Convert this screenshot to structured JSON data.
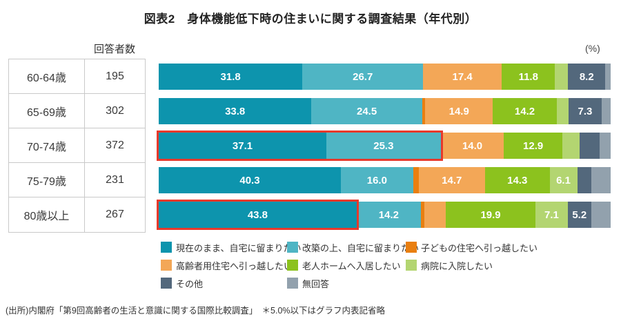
{
  "title": "図表2　身体機能低下時の住まいに関する調査結果（年代別）",
  "percent_label": "(%)",
  "table": {
    "header": "回答者数",
    "rows": [
      {
        "age": "60-64歳",
        "count": "195"
      },
      {
        "age": "65-69歳",
        "count": "302"
      },
      {
        "age": "70-74歳",
        "count": "372"
      },
      {
        "age": "75-79歳",
        "count": "231"
      },
      {
        "age": "80歳以上",
        "count": "267"
      }
    ]
  },
  "source": "(出所)内閣府「第9回高齢者の生活と意識に関する国際比較調査」　＊5.0%以下はグラフ内表記省略",
  "chart_data": {
    "type": "bar",
    "stacked": true,
    "orientation": "horizontal",
    "unit": "%",
    "xlim": [
      0,
      100
    ],
    "label_threshold": 5.0,
    "note": "＊5.0%以下はグラフ内表記省略",
    "categories": [
      "60-64歳",
      "65-69歳",
      "70-74歳",
      "75-79歳",
      "80歳以上"
    ],
    "respondents": [
      195,
      302,
      372,
      231,
      267
    ],
    "series": [
      {
        "name": "現在のまま、自宅に留まりたい",
        "color": "#0d94ad",
        "values": [
          31.8,
          33.8,
          37.1,
          40.3,
          43.8
        ]
      },
      {
        "name": "改築の上、自宅に留まりたい",
        "color": "#4fb5c4",
        "values": [
          26.7,
          24.5,
          25.3,
          16.0,
          14.2
        ]
      },
      {
        "name": "子どもの住宅へ引っ越したい",
        "color": "#e97f10",
        "values": [
          0.0,
          0.7,
          0.0,
          1.2,
          0.8
        ]
      },
      {
        "name": "高齢者用住宅へ引っ越したい",
        "color": "#f3a757",
        "values": [
          17.4,
          14.9,
          14.0,
          14.7,
          4.7
        ]
      },
      {
        "name": "老人ホームへ入居したい",
        "color": "#8cc21e",
        "values": [
          11.8,
          14.2,
          12.9,
          14.3,
          19.9
        ]
      },
      {
        "name": "病院に入院したい",
        "color": "#b3d571",
        "values": [
          2.9,
          2.6,
          3.9,
          6.1,
          7.1
        ]
      },
      {
        "name": "その他",
        "color": "#53687c",
        "values": [
          8.2,
          7.3,
          4.4,
          3.2,
          5.2
        ]
      },
      {
        "name": "無回答",
        "color": "#92a1ad",
        "values": [
          1.2,
          2.0,
          2.4,
          4.2,
          4.3
        ]
      }
    ],
    "highlights": [
      {
        "category_index": 2,
        "segments": 2
      },
      {
        "category_index": 4,
        "segments": 1
      }
    ],
    "highlight_color": "#e8392b"
  }
}
